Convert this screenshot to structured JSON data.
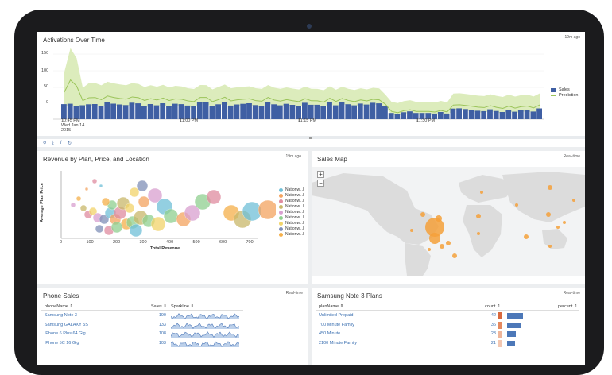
{
  "activations": {
    "title": "Activations Over Time",
    "updated": "19m ago",
    "y_ticks": [
      "150",
      "100",
      "50",
      "0"
    ],
    "x_ticks": [
      "10:45 PM",
      "11:00 PM",
      "11:15 PM",
      "11:30 PM"
    ],
    "x_date": "Wed Jan 14",
    "x_year": "2015",
    "legend": [
      "Sales",
      "Prediction"
    ],
    "colors": {
      "sales": "#3f5fa3",
      "prediction": "#9bc45a",
      "band": "#d8eab5"
    },
    "tools": [
      "search-icon",
      "download-icon",
      "info-icon",
      "refresh-icon"
    ]
  },
  "revenue": {
    "title": "Revenue by Plan, Price, and Location",
    "updated": "19m ago",
    "ylabel": "Average Plan Price",
    "xlabel": "Total Revenue",
    "x_ticks": [
      "0",
      "100",
      "200",
      "300",
      "400",
      "500",
      "600",
      "700"
    ],
    "legend": [
      "Nationw...l",
      "Nationw...l",
      "Nationw...l",
      "Nationw...l",
      "Nationw...l",
      "Nationw...l",
      "Nationw...l",
      "Nationw...l",
      "Nationw...l"
    ],
    "legend_colors": [
      "#6fc0d8",
      "#f4a460",
      "#e08ca0",
      "#c9b86a",
      "#d9a0d0",
      "#8fd08f",
      "#f2d46a",
      "#7f8fb8",
      "#f5b04a"
    ]
  },
  "map": {
    "title": "Sales Map",
    "updated": "Real-time",
    "zoom_in": "+",
    "zoom_out": "−"
  },
  "phone_sales": {
    "title": "Phone Sales",
    "updated": "Real-time",
    "columns": [
      "phoneName",
      "Sales",
      "Sparkline"
    ],
    "rows": [
      {
        "name": "Samsung Note 3",
        "sales": "190"
      },
      {
        "name": "Samsung GALAXY 5S",
        "sales": "133"
      },
      {
        "name": "iPhone 6 Plus 64 Gig",
        "sales": "108"
      },
      {
        "name": "iPhone 5C 16 Gig",
        "sales": "103"
      }
    ]
  },
  "note3_plans": {
    "title": "Samsung Note 3 Plans",
    "updated": "Real-time",
    "columns": [
      "planName",
      "count",
      "percent"
    ],
    "rows": [
      {
        "name": "Unlimited Prepaid",
        "count": "42",
        "percent": 1.0
      },
      {
        "name": "700 Minute Family",
        "count": "36",
        "percent": 0.86
      },
      {
        "name": "450 Minute",
        "count": "23",
        "percent": 0.55
      },
      {
        "name": "2100 Minute Family",
        "count": "21",
        "percent": 0.5
      }
    ],
    "bar_color": "#4d78b8",
    "heat_colors": [
      "#d8693e",
      "#e4895f",
      "#efb69a",
      "#f3c7b1"
    ]
  }
}
